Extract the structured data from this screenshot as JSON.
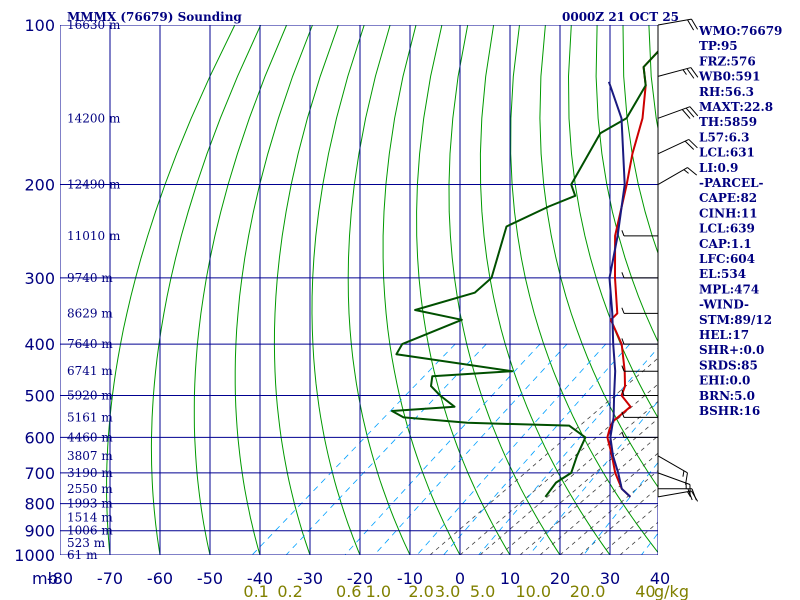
{
  "header": {
    "station": "MMMX (76679) Sounding",
    "time": "0000Z 21 OCT 25"
  },
  "colors": {
    "grid": "#000090",
    "dry_adiabat": "#009900",
    "moist_adiabat": "#404040",
    "mixing_ratio": "#00a0ff",
    "temperature": "#cc0000",
    "dewpoint": "#005000",
    "parcel": "#1a1a80"
  },
  "indices": [
    "WMO:76679",
    "TP:95",
    "FRZ:576",
    "WB0:591",
    "RH:56.3",
    "MAXT:22.8",
    "TH:5859",
    "L57:6.3",
    "LCL:631",
    "LI:0.9",
    "-PARCEL-",
    "CAPE:82",
    "CINH:11",
    "LCL:639",
    "CAP:1.1",
    "LFC:604",
    "EL:534",
    "MPL:474",
    "-WIND-",
    "STM:89/12",
    "HEL:17",
    "SHR+:0.0",
    "SRDS:85",
    "EHI:0.0",
    "BRN:5.0",
    "BSHR:16"
  ],
  "chart_data": {
    "type": "line",
    "title": "MMMX (76679) Sounding",
    "subtitle": "0000Z 21 OCT 25",
    "xlabel": "",
    "ylabel": "mb",
    "pressure_ticks": [
      100,
      200,
      300,
      400,
      500,
      600,
      700,
      800,
      900,
      1000
    ],
    "pressure_tick_labels": [
      "100",
      "200",
      "300",
      "400",
      "500",
      "600",
      "700",
      "800",
      "900",
      "1000"
    ],
    "temperature_ticks": [
      -80,
      -70,
      -60,
      -50,
      -40,
      -30,
      -20,
      -10,
      0,
      10,
      20,
      30,
      40
    ],
    "temperature_tick_labels": [
      "-80",
      "-70",
      "-60",
      "-50",
      "-40",
      "-30",
      "-20",
      "-10",
      "0",
      "10",
      "20",
      "30",
      "40"
    ],
    "mixing_ratio_ticks": [
      0.1,
      0.2,
      0.6,
      1.0,
      2.0,
      3.0,
      5.0,
      10.0,
      20.0,
      40.0
    ],
    "mixing_ratio_tick_labels": [
      "0.1",
      "0.2",
      "0.6",
      "1.0",
      "2.0",
      "3.0",
      "5.0",
      "10.0",
      "20.0",
      "40"
    ],
    "mixing_ratio_unit": "g/kg",
    "height_labels": [
      {
        "p": 100,
        "label": "16630 m"
      },
      {
        "p": 150,
        "label": "14200 m"
      },
      {
        "p": 200,
        "label": "12490 m"
      },
      {
        "p": 250,
        "label": "11010 m"
      },
      {
        "p": 300,
        "label": "9740 m"
      },
      {
        "p": 350,
        "label": "8629 m"
      },
      {
        "p": 400,
        "label": "7640 m"
      },
      {
        "p": 450,
        "label": "6741 m"
      },
      {
        "p": 500,
        "label": "5920 m"
      },
      {
        "p": 550,
        "label": "5161 m"
      },
      {
        "p": 600,
        "label": "4460 m"
      },
      {
        "p": 650,
        "label": "3807 m"
      },
      {
        "p": 700,
        "label": "3190 m"
      },
      {
        "p": 750,
        "label": "2550 m"
      },
      {
        "p": 800,
        "label": "1993 m"
      },
      {
        "p": 850,
        "label": "1514 m"
      },
      {
        "p": 900,
        "label": "1006 m"
      },
      {
        "p": 950,
        "label": "523 m"
      },
      {
        "p": 1000,
        "label": "61 m"
      }
    ],
    "xlim": [
      -80,
      40
    ],
    "ylim": [
      1000,
      100
    ],
    "grid": true,
    "series": [
      {
        "color": "#cc0000",
        "points": [
          [
            100,
            -80.2
          ],
          [
            110,
            -77.4
          ],
          [
            120,
            -76.5
          ],
          [
            130,
            -71.8
          ],
          [
            150,
            -64.8
          ],
          [
            175,
            -58.6
          ],
          [
            200,
            -52.6
          ],
          [
            250,
            -43.0
          ],
          [
            300,
            -33.3
          ],
          [
            350,
            -24.6
          ],
          [
            360,
            -24.4
          ],
          [
            400,
            -16.6
          ],
          [
            450,
            -9.7
          ],
          [
            480,
            -6.2
          ],
          [
            500,
            -4.7
          ],
          [
            525,
            -0.3
          ],
          [
            560,
            -0.4
          ],
          [
            580,
            0.8
          ],
          [
            600,
            2.2
          ],
          [
            650,
            7.4
          ],
          [
            700,
            12.0
          ],
          [
            750,
            17.0
          ],
          [
            777,
            20.6
          ]
        ]
      },
      {
        "color": "#005000",
        "points": [
          [
            100,
            -80.2
          ],
          [
            110,
            -77.4
          ],
          [
            120,
            -76.5
          ],
          [
            130,
            -71.8
          ],
          [
            150,
            -68.0
          ],
          [
            160,
            -69.8
          ],
          [
            200,
            -63.7
          ],
          [
            210,
            -60.3
          ],
          [
            220,
            -63.1
          ],
          [
            240,
            -66.9
          ],
          [
            300,
            -58.0
          ],
          [
            320,
            -57.9
          ],
          [
            345,
            -65.8
          ],
          [
            360,
            -54.2
          ],
          [
            400,
            -60.5
          ],
          [
            418,
            -59.3
          ],
          [
            450,
            -32.2
          ],
          [
            460,
            -47.0
          ],
          [
            480,
            -45.0
          ],
          [
            500,
            -41.0
          ],
          [
            525,
            -35.5
          ],
          [
            535,
            -47.0
          ],
          [
            550,
            -43.2
          ],
          [
            563,
            -29.2
          ],
          [
            570,
            -8.2
          ],
          [
            600,
            -2.2
          ],
          [
            650,
            0.4
          ],
          [
            700,
            3.2
          ],
          [
            730,
            2.4
          ],
          [
            777,
            3.6
          ]
        ]
      },
      {
        "color": "#1a1a80",
        "points": [
          [
            128,
            -80.0
          ],
          [
            150,
            -69.0
          ],
          [
            200,
            -53.0
          ],
          [
            250,
            -42.5
          ],
          [
            300,
            -34.4
          ],
          [
            350,
            -25.6
          ],
          [
            400,
            -18.3
          ],
          [
            450,
            -11.6
          ],
          [
            500,
            -6.2
          ],
          [
            550,
            -1.2
          ],
          [
            600,
            2.8
          ],
          [
            650,
            7.6
          ],
          [
            700,
            12.6
          ],
          [
            750,
            17.0
          ],
          [
            777,
            20.6
          ]
        ]
      }
    ],
    "wind_barbs": [
      {
        "p": 100,
        "dir": 80,
        "spd": 20
      },
      {
        "p": 125,
        "dir": 75,
        "spd": 25
      },
      {
        "p": 150,
        "dir": 70,
        "spd": 30
      },
      {
        "p": 175,
        "dir": 65,
        "spd": 20
      },
      {
        "p": 200,
        "dir": 60,
        "spd": 15
      },
      {
        "p": 250,
        "dir": 270,
        "spd": 5
      },
      {
        "p": 300,
        "dir": 270,
        "spd": 5
      },
      {
        "p": 350,
        "dir": 270,
        "spd": 5
      },
      {
        "p": 400,
        "dir": 270,
        "spd": 5
      },
      {
        "p": 450,
        "dir": 270,
        "spd": 5
      },
      {
        "p": 500,
        "dir": 270,
        "spd": 5
      },
      {
        "p": 550,
        "dir": 270,
        "spd": 5
      },
      {
        "p": 600,
        "dir": 270,
        "spd": 5
      },
      {
        "p": 650,
        "dir": 120,
        "spd": 15
      },
      {
        "p": 700,
        "dir": 110,
        "spd": 15
      },
      {
        "p": 750,
        "dir": 90,
        "spd": 20
      },
      {
        "p": 777,
        "dir": 80,
        "spd": 15
      }
    ]
  }
}
